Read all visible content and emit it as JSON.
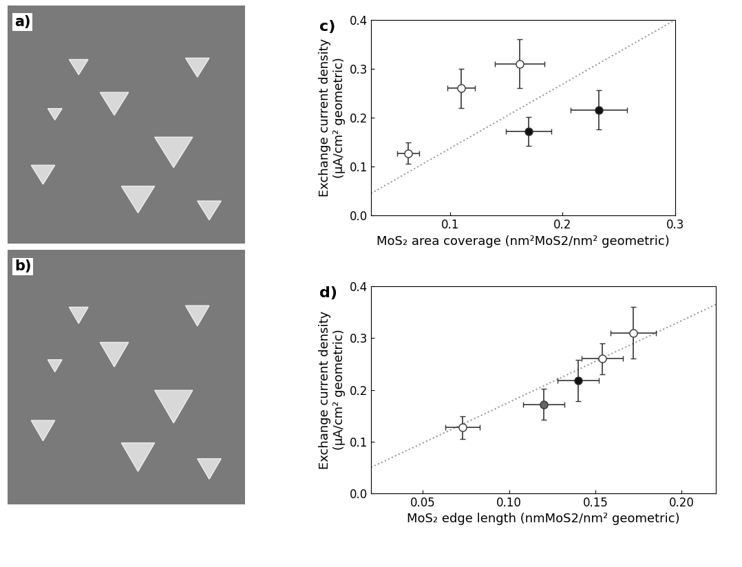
{
  "images": [
    {
      "panel_label": "a)"
    },
    {
      "panel_label": "b)"
    }
  ],
  "chart_data": [
    {
      "type": "scatter",
      "panel_label": "c)",
      "x_label": "MoS₂ area coverage (nm²MoS2/nm² geometric)",
      "y_label": "Exchange current density\n(µA/cm² geometric)",
      "xlim": [
        0.03,
        0.3
      ],
      "xticks": [
        0.1,
        0.2,
        0.3
      ],
      "ylim": [
        0,
        0.4
      ],
      "yticks": [
        {
          "value": 0,
          "label": "0.0"
        },
        0.1,
        0.2,
        0.3,
        0.4
      ],
      "series": [
        {
          "type": "line",
          "line_style": "dotted",
          "color": "#999999",
          "x": [
            0.03,
            0.3
          ],
          "values": [
            0.045,
            0.4
          ]
        },
        {
          "type": "scatter",
          "marker": "o",
          "color": "#ffffff",
          "x": [
            0.063,
            0.11,
            0.162
          ],
          "values": [
            0.127,
            0.26,
            0.31
          ],
          "xerr": [
            0.01,
            0.012,
            0.022
          ],
          "yerr": [
            0.022,
            0.04,
            0.05
          ]
        },
        {
          "type": "scatter",
          "marker": "o",
          "color": "#111111",
          "x": [
            0.17,
            0.232
          ],
          "values": [
            0.172,
            0.216
          ],
          "xerr": [
            0.02,
            0.025
          ],
          "yerr": [
            0.03,
            0.04
          ]
        }
      ]
    },
    {
      "type": "scatter",
      "panel_label": "d)",
      "x_label": "MoS₂ edge length (nmMoS2/nm² geometric)",
      "y_label": "Exchange current density\n(µA/cm² geometric)",
      "xlim": [
        0.02,
        0.22
      ],
      "xticks": [
        0.05,
        {
          "value": 0.1,
          "label": "0.10"
        },
        0.15,
        {
          "value": 0.2,
          "label": "0.20"
        }
      ],
      "ylim": [
        0,
        0.4
      ],
      "yticks": [
        {
          "value": 0,
          "label": "0.0"
        },
        0.1,
        0.2,
        0.3,
        0.4
      ],
      "series": [
        {
          "type": "line",
          "line_style": "dotted",
          "color": "#999999",
          "x": [
            0.02,
            0.22
          ],
          "values": [
            0.05,
            0.365
          ]
        },
        {
          "type": "scatter",
          "marker": "o",
          "color": "#ffffff",
          "x": [
            0.073,
            0.154,
            0.172
          ],
          "values": [
            0.127,
            0.26,
            0.31
          ],
          "xerr": [
            0.01,
            0.012,
            0.013
          ],
          "yerr": [
            0.022,
            0.03,
            0.05
          ]
        },
        {
          "type": "scatter",
          "marker": "o",
          "color": "#666666",
          "x": [
            0.12
          ],
          "values": [
            0.172
          ],
          "xerr": [
            0.012
          ],
          "yerr": [
            0.03
          ]
        },
        {
          "type": "scatter",
          "marker": "o",
          "color": "#111111",
          "x": [
            0.14
          ],
          "values": [
            0.218
          ],
          "xerr": [
            0.012
          ],
          "yerr": [
            0.04
          ]
        }
      ]
    }
  ]
}
